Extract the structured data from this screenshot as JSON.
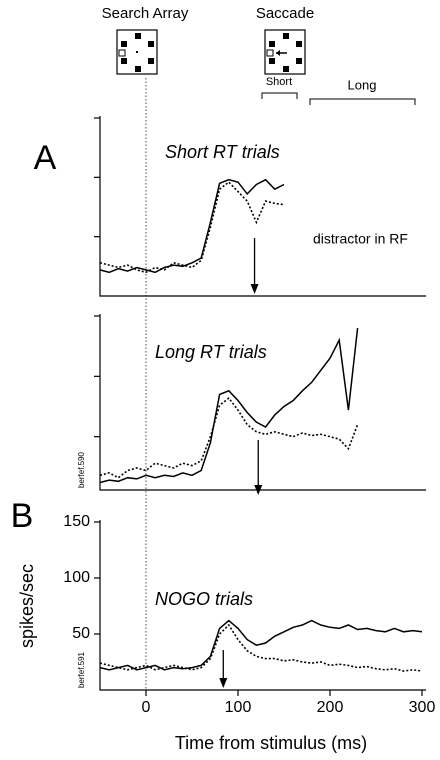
{
  "figure": {
    "stimulus_labels": [
      "Search Array",
      "Saccade"
    ],
    "epochs": [
      "Short",
      "Long"
    ]
  },
  "chart_data": [
    {
      "type": "line",
      "panel_label": "A",
      "title": "Short RT trials",
      "annotation": "distractor in RF",
      "arrow_x": 118,
      "x": [
        -50,
        -40,
        -30,
        -20,
        -10,
        0,
        10,
        20,
        30,
        40,
        50,
        60,
        70,
        80,
        90,
        100,
        110,
        120,
        130,
        140,
        150
      ],
      "series": [
        {
          "style": "solid",
          "color": "#000000",
          "values": [
            22,
            20,
            23,
            21,
            24,
            22,
            20,
            24,
            26,
            25,
            28,
            32,
            62,
            95,
            98,
            96,
            86,
            94,
            98,
            90,
            94
          ]
        },
        {
          "style": "dashed",
          "color": "#000000",
          "values": [
            28,
            26,
            24,
            26,
            22,
            20,
            24,
            22,
            28,
            26,
            24,
            30,
            58,
            90,
            96,
            88,
            80,
            62,
            80,
            78,
            77
          ]
        }
      ],
      "xlim": [
        -50,
        300
      ],
      "ylim": [
        0,
        150
      ],
      "yticks": [
        50,
        100,
        150
      ],
      "ytick_labels": false
    },
    {
      "type": "line",
      "title": "Long RT trials",
      "side_note": "berfef.590",
      "arrow_x": 122,
      "x": [
        -50,
        -40,
        -30,
        -20,
        -10,
        0,
        10,
        20,
        30,
        40,
        50,
        60,
        70,
        80,
        90,
        100,
        110,
        120,
        130,
        140,
        150,
        160,
        170,
        180,
        190,
        200,
        210,
        220,
        230
      ],
      "series": [
        {
          "style": "solid",
          "color": "#000000",
          "values": [
            12,
            14,
            13,
            16,
            15,
            18,
            16,
            18,
            17,
            20,
            18,
            22,
            45,
            85,
            88,
            80,
            70,
            62,
            58,
            68,
            75,
            80,
            88,
            95,
            105,
            115,
            130,
            72,
            140
          ]
        },
        {
          "style": "dashed",
          "color": "#000000",
          "values": [
            18,
            20,
            16,
            22,
            24,
            22,
            28,
            26,
            24,
            28,
            26,
            30,
            50,
            76,
            82,
            72,
            60,
            54,
            52,
            54,
            52,
            50,
            53,
            51,
            52,
            50,
            48,
            40,
            60
          ]
        }
      ],
      "xlim": [
        -50,
        300
      ],
      "ylim": [
        0,
        150
      ],
      "yticks": [
        50,
        100,
        150
      ],
      "ytick_labels": false
    },
    {
      "type": "line",
      "panel_label": "B",
      "title": "NOGO trials",
      "side_note": "berfef.591",
      "arrow_x": 84,
      "x_label": "Time from stimulus (ms)",
      "y_label": "spikes/sec",
      "x": [
        -50,
        -40,
        -30,
        -20,
        -10,
        0,
        10,
        20,
        30,
        40,
        50,
        60,
        70,
        80,
        90,
        100,
        110,
        120,
        130,
        140,
        150,
        160,
        170,
        180,
        190,
        200,
        210,
        220,
        230,
        240,
        250,
        260,
        270,
        280,
        290,
        300
      ],
      "series": [
        {
          "style": "solid",
          "color": "#000000",
          "values": [
            20,
            18,
            20,
            22,
            18,
            20,
            22,
            18,
            20,
            19,
            20,
            22,
            30,
            55,
            62,
            55,
            45,
            40,
            42,
            48,
            52,
            56,
            58,
            62,
            58,
            56,
            55,
            58,
            54,
            55,
            53,
            52,
            55,
            52,
            53,
            52
          ]
        },
        {
          "style": "dashed",
          "color": "#000000",
          "values": [
            24,
            22,
            20,
            18,
            20,
            22,
            18,
            20,
            22,
            20,
            18,
            20,
            28,
            50,
            58,
            45,
            35,
            30,
            28,
            28,
            26,
            27,
            25,
            24,
            25,
            22,
            23,
            22,
            20,
            21,
            19,
            18,
            19,
            17,
            18,
            17
          ]
        }
      ],
      "xlim": [
        -50,
        300
      ],
      "ylim": [
        0,
        150
      ],
      "xticks": [
        0,
        100,
        200,
        300
      ],
      "yticks": [
        50,
        100,
        150
      ],
      "ytick_labels": true
    }
  ]
}
